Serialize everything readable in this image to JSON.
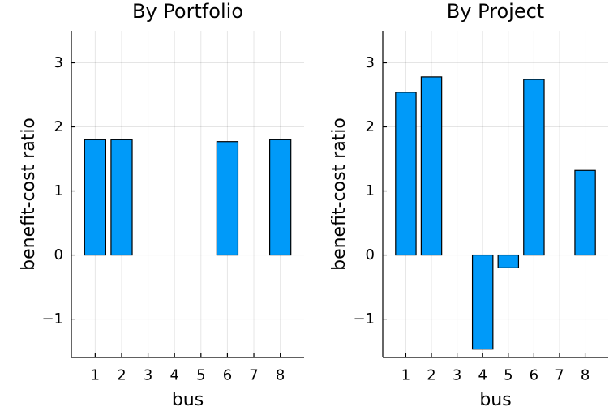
{
  "chart_data": [
    {
      "type": "bar",
      "title": "By Portfolio",
      "xlabel": "bus",
      "ylabel": "benefit-cost ratio",
      "categories": [
        "1",
        "2",
        "3",
        "4",
        "5",
        "6",
        "7",
        "8"
      ],
      "values": [
        1.8,
        1.8,
        0,
        0,
        0,
        1.77,
        0,
        1.8
      ],
      "ylim": [
        -1.6,
        3.5
      ],
      "yticks": [
        -1,
        0,
        1,
        2,
        3
      ],
      "ytick_labels": [
        "−1",
        "0",
        "1",
        "2",
        "3"
      ],
      "grid": true,
      "legend": "none",
      "bar_color": "#009af9"
    },
    {
      "type": "bar",
      "title": "By Project",
      "xlabel": "bus",
      "ylabel": "benefit-cost ratio",
      "categories": [
        "1",
        "2",
        "3",
        "4",
        "5",
        "6",
        "7",
        "8"
      ],
      "values": [
        2.54,
        2.78,
        0,
        -1.47,
        -0.2,
        2.74,
        0,
        1.32
      ],
      "ylim": [
        -1.6,
        3.5
      ],
      "yticks": [
        -1,
        0,
        1,
        2,
        3
      ],
      "ytick_labels": [
        "−1",
        "0",
        "1",
        "2",
        "3"
      ],
      "grid": true,
      "legend": "none",
      "bar_color": "#009af9"
    }
  ]
}
